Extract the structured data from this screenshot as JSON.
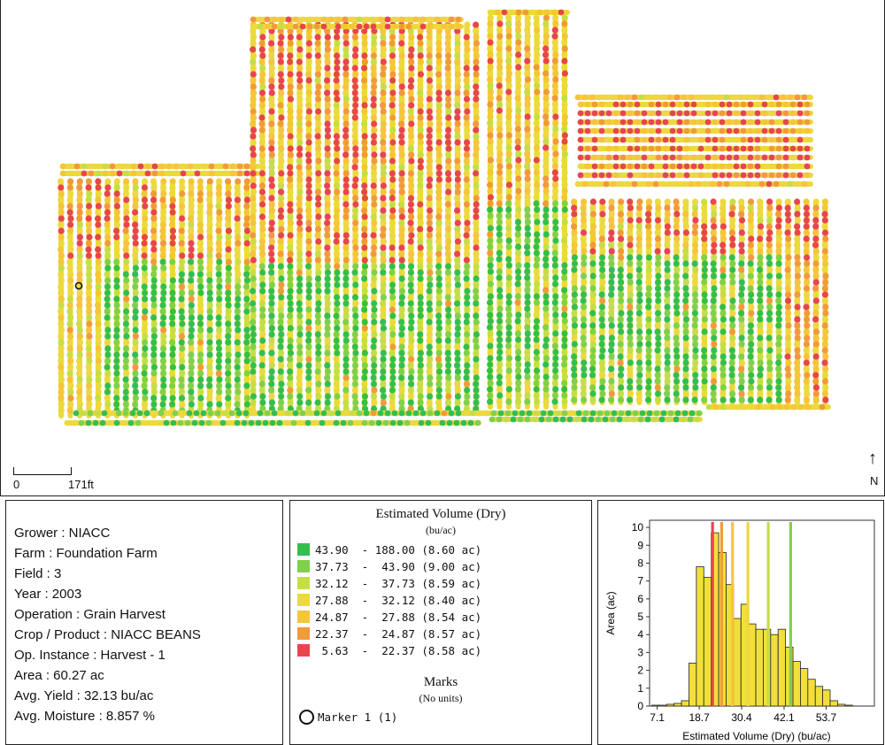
{
  "map": {
    "scale_zero": "0",
    "scale_distance": "171ft",
    "north_label": "N",
    "north_symbol": "↑"
  },
  "info": {
    "grower": "Grower : NIACC",
    "farm": "Farm  : Foundation Farm",
    "field": "Field  : 3",
    "year": "Year : 2003",
    "operation": "Operation  : Grain Harvest",
    "crop": "Crop / Product : NIACC  BEANS",
    "instance": "Op. Instance : Harvest - 1",
    "area": "Area : 60.27 ac",
    "avg_yield": "Avg. Yield : 32.13 bu/ac",
    "avg_moisture": "Avg. Moisture : 8.857 %"
  },
  "legend": {
    "title": "Estimated Volume (Dry)",
    "unit": "(bu/ac)",
    "ranges": [
      {
        "label": "43.90  - 188.00 (8.60 ac)",
        "color": "#33bf4f"
      },
      {
        "label": "37.73  -  43.90 (9.00 ac)",
        "color": "#7fd14a"
      },
      {
        "label": "32.12  -  37.73 (8.59 ac)",
        "color": "#c6de46"
      },
      {
        "label": "27.88  -  32.12 (8.40 ac)",
        "color": "#ecd93e"
      },
      {
        "label": "24.87  -  27.88 (8.54 ac)",
        "color": "#f5c53a"
      },
      {
        "label": "22.37  -  24.87 (8.57 ac)",
        "color": "#f29a3b"
      },
      {
        "label": " 5.63  -  22.37 (8.58 ac)",
        "color": "#e8454f"
      }
    ],
    "marks_title": "Marks",
    "marks_unit": "(No units)",
    "marker_label": "Marker 1 (1)"
  },
  "chart_data": {
    "type": "bar",
    "title": "",
    "xlabel": "Estimated Volume (Dry) (bu/ac)",
    "ylabel": "Area (ac)",
    "xlim": [
      5,
      67
    ],
    "ylim": [
      0,
      10.4
    ],
    "x_ticks": [
      7.1,
      18.7,
      30.4,
      42.1,
      53.7
    ],
    "y_ticks": [
      0,
      1,
      2,
      3,
      4,
      5,
      6,
      7,
      8,
      9,
      10
    ],
    "bin_width": 2.05,
    "bin_starts": [
      5.6,
      7.65,
      9.7,
      11.75,
      13.8,
      15.85,
      17.9,
      19.95,
      22.0,
      24.05,
      26.1,
      28.15,
      30.2,
      32.25,
      34.3,
      36.35,
      38.4,
      40.45,
      42.5,
      44.55,
      46.6,
      48.65,
      50.7,
      52.75,
      54.8,
      56.85,
      58.9,
      60.95
    ],
    "areas": [
      0.05,
      0.05,
      0.1,
      0.15,
      0.3,
      2.4,
      7.8,
      7.2,
      9.7,
      8.6,
      6.8,
      4.9,
      5.7,
      4.6,
      4.3,
      4.3,
      4.0,
      4.3,
      3.3,
      2.5,
      2.1,
      1.5,
      1.1,
      0.9,
      0.3,
      0.1,
      0.05,
      0.0
    ],
    "class_breaks": [
      {
        "value": 22.37,
        "color": "#e8454f"
      },
      {
        "value": 24.87,
        "color": "#f29a3b"
      },
      {
        "value": 27.88,
        "color": "#f5c53a"
      },
      {
        "value": 32.12,
        "color": "#ecd93e"
      },
      {
        "value": 37.73,
        "color": "#c6de46"
      },
      {
        "value": 43.9,
        "color": "#7fd14a"
      }
    ],
    "bar_color": "#f2e03a"
  }
}
